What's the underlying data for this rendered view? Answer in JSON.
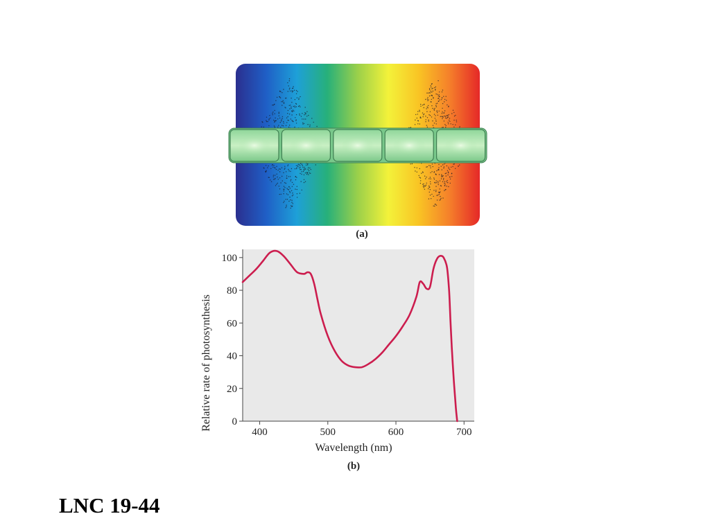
{
  "figure_a": {
    "caption": "(a)",
    "spectrum_colors": [
      "#2b2f8f",
      "#1f5fc6",
      "#1ea0d8",
      "#27b07a",
      "#9bd04a",
      "#f3f23a",
      "#f9c424",
      "#f5802a",
      "#e52828"
    ]
  },
  "chart_data": {
    "type": "line",
    "caption": "(b)",
    "xlabel": "Wavelength (nm)",
    "ylabel": "Relative rate of photosynthesis",
    "xlim": [
      375,
      715
    ],
    "ylim": [
      0,
      105
    ],
    "xticks": [
      400,
      500,
      600,
      700
    ],
    "yticks": [
      0,
      20,
      40,
      60,
      80,
      100
    ],
    "grid": false,
    "background": "#e9e9e9",
    "series": [
      {
        "color": "#cc1d4e",
        "x": [
          375,
          385,
          395,
          405,
          415,
          425,
          435,
          445,
          455,
          465,
          470,
          475,
          480,
          485,
          490,
          500,
          510,
          520,
          530,
          540,
          550,
          560,
          570,
          580,
          590,
          600,
          610,
          620,
          630,
          635,
          640,
          645,
          650,
          655,
          660,
          665,
          670,
          675,
          678,
          680,
          682,
          685,
          688,
          690
        ],
        "y": [
          85,
          89,
          93,
          98,
          103,
          104,
          101,
          96,
          91,
          90,
          91,
          90,
          84,
          74,
          65,
          52,
          43,
          37,
          34,
          33,
          33,
          35,
          38,
          42,
          47,
          52,
          58,
          65,
          76,
          85,
          84,
          81,
          82,
          93,
          99,
          101,
          100,
          94,
          80,
          62,
          45,
          25,
          8,
          0
        ]
      }
    ]
  },
  "slide": {
    "label": "LNC 19-44"
  }
}
